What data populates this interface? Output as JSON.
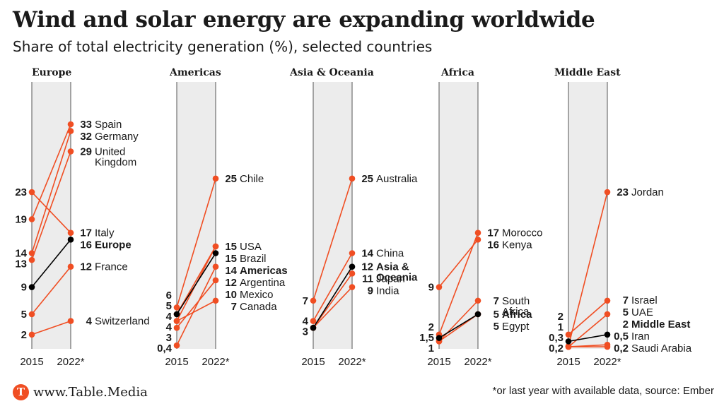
{
  "header": {
    "title": "Wind and solar energy are expanding worldwide",
    "subtitle": "Share of total electricity generation (%), selected countries"
  },
  "footer": {
    "brand": "www.Table.Media",
    "logo_letter": "T",
    "note": "*or last year with available data, source: Ember"
  },
  "colors": {
    "country": "#f04e23",
    "aggregate": "#000000",
    "band": "#ececec"
  },
  "chart_data": {
    "type": "slope",
    "x": [
      "2015",
      "2022*"
    ],
    "ylabel": "Share of total electricity generation (%)",
    "panels": [
      {
        "title": "Europe",
        "series": [
          {
            "name": "Spain",
            "start": 19,
            "end": 33,
            "start_label": "19",
            "end_label": "33",
            "aggregate": false
          },
          {
            "name": "Germany",
            "start": 14,
            "end": 32,
            "start_label": "14",
            "end_label": "32",
            "aggregate": false
          },
          {
            "name": "United Kingdom",
            "start": 13,
            "end": 29,
            "start_label": "13",
            "end_label": "29",
            "aggregate": false
          },
          {
            "name": "Italy",
            "start": 23,
            "end": 17,
            "start_label": "23",
            "end_label": "17",
            "aggregate": false
          },
          {
            "name": "Europe",
            "start": 9,
            "end": 16,
            "start_label": "9",
            "end_label": "16",
            "aggregate": true
          },
          {
            "name": "France",
            "start": 5,
            "end": 12,
            "start_label": "5",
            "end_label": "12",
            "aggregate": false
          },
          {
            "name": "Switzerland",
            "start": 2,
            "end": 4,
            "start_label": "2",
            "end_label": "4",
            "aggregate": false
          }
        ]
      },
      {
        "title": "Americas",
        "series": [
          {
            "name": "Chile",
            "start": 6,
            "end": 25,
            "start_label": "6",
            "end_label": "25",
            "aggregate": false
          },
          {
            "name": "USA",
            "start": 5,
            "end": 15,
            "start_label": "5",
            "end_label": "15",
            "aggregate": false
          },
          {
            "name": "Brazil",
            "start": 4,
            "end": 15,
            "start_label": "4",
            "end_label": "15",
            "aggregate": false
          },
          {
            "name": "Americas",
            "start": 5,
            "end": 14,
            "start_label": "",
            "end_label": "14",
            "aggregate": true
          },
          {
            "name": "Argentina",
            "start": 0.4,
            "end": 12,
            "start_label": "0,4",
            "end_label": "12",
            "aggregate": false
          },
          {
            "name": "Mexico",
            "start": 3,
            "end": 10,
            "start_label": "3",
            "end_label": "10",
            "aggregate": false
          },
          {
            "name": "Canada",
            "start": 4,
            "end": 7,
            "start_label": "4",
            "end_label": "7",
            "aggregate": false
          }
        ]
      },
      {
        "title": "Asia & Oceania",
        "series": [
          {
            "name": "Australia",
            "start": 7,
            "end": 25,
            "start_label": "7",
            "end_label": "25",
            "aggregate": false
          },
          {
            "name": "China",
            "start": 4,
            "end": 14,
            "start_label": "4",
            "end_label": "14",
            "aggregate": false
          },
          {
            "name": "Asia & Oceania",
            "start": 3,
            "end": 12,
            "start_label": "3",
            "end_label": "12",
            "aggregate": true
          },
          {
            "name": "Japan",
            "start": 3,
            "end": 11,
            "start_label": "",
            "end_label": "11",
            "aggregate": false
          },
          {
            "name": "India",
            "start": 3,
            "end": 9,
            "start_label": "",
            "end_label": "9",
            "aggregate": false
          }
        ]
      },
      {
        "title": "Africa",
        "series": [
          {
            "name": "Morocco",
            "start": 2,
            "end": 17,
            "start_label": "2",
            "end_label": "17",
            "aggregate": false
          },
          {
            "name": "Kenya",
            "start": 9,
            "end": 16,
            "start_label": "9",
            "end_label": "16",
            "aggregate": false
          },
          {
            "name": "South Africa",
            "start": 1,
            "end": 7,
            "start_label": "1",
            "end_label": "7",
            "aggregate": false
          },
          {
            "name": "Africa",
            "start": 1.5,
            "end": 5,
            "start_label": "1,5",
            "end_label": "5",
            "aggregate": true
          },
          {
            "name": "Egypt",
            "start": 1,
            "end": 5,
            "start_label": "",
            "end_label": "5",
            "aggregate": false
          }
        ]
      },
      {
        "title": "Middle East",
        "series": [
          {
            "name": "Jordan",
            "start": 0.3,
            "end": 23,
            "start_label": "0,3",
            "end_label": "23",
            "aggregate": false
          },
          {
            "name": "Israel",
            "start": 2,
            "end": 7,
            "start_label": "2",
            "end_label": "7",
            "aggregate": false
          },
          {
            "name": "UAE",
            "start": 0.2,
            "end": 5,
            "start_label": "0,2",
            "end_label": "5",
            "aggregate": false
          },
          {
            "name": "Middle East",
            "start": 1,
            "end": 2,
            "start_label": "1",
            "end_label": "2",
            "aggregate": true
          },
          {
            "name": "Iran",
            "start": 0.2,
            "end": 0.5,
            "start_label": "",
            "end_label": "0,5",
            "aggregate": false
          },
          {
            "name": "Saudi Arabia",
            "start": 0.2,
            "end": 0.2,
            "start_label": "",
            "end_label": "0,2",
            "aggregate": false
          }
        ]
      }
    ]
  }
}
